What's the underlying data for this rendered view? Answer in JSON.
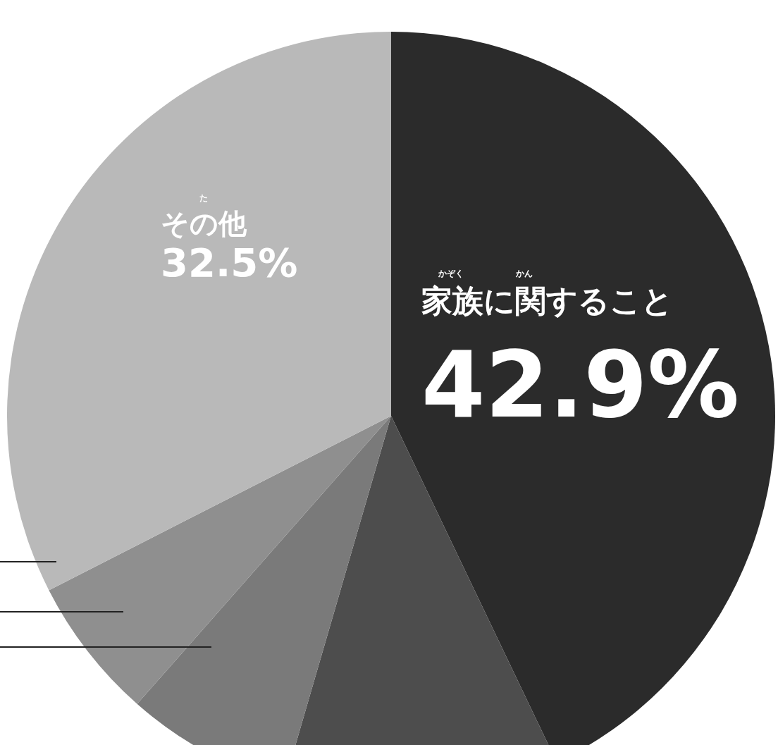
{
  "chart_data": {
    "type": "pie",
    "categories": [
      "家族に関すること",
      null,
      null,
      null,
      "その他"
    ],
    "values": [
      42.9,
      11.6,
      7.0,
      6.0,
      32.5
    ],
    "value_labels": [
      "42.9%",
      null,
      null,
      null,
      "32.5%"
    ],
    "colors": [
      "#2b2b2b",
      "#4d4d4d",
      "#7a7a7a",
      "#8f8f8f",
      "#b9b9b9"
    ],
    "annotations": [
      "かぞく",
      "かん",
      "た"
    ],
    "legend": false
  }
}
